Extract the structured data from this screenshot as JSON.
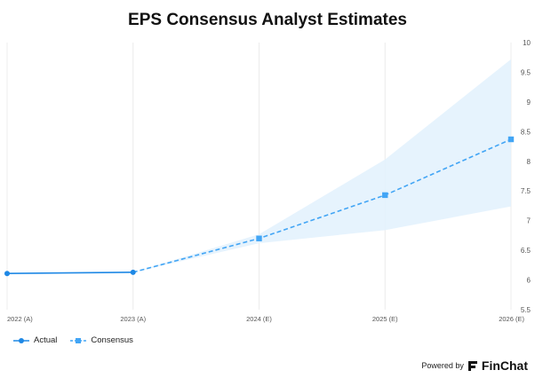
{
  "chart_data": {
    "type": "line",
    "title": "EPS Consensus Analyst Estimates",
    "categories": [
      "2022 (A)",
      "2023 (A)",
      "2024 (E)",
      "2025 (E)",
      "2026 (E)"
    ],
    "series": [
      {
        "name": "Actual",
        "values": [
          6.11,
          6.13,
          null,
          null,
          null
        ],
        "color": "#1e88e5",
        "style": "solid",
        "marker": "circle"
      },
      {
        "name": "Consensus",
        "values": [
          null,
          6.13,
          6.7,
          7.43,
          8.37
        ],
        "color": "#42a5f5",
        "style": "dashed",
        "marker": "square"
      }
    ],
    "band": {
      "low": [
        null,
        6.13,
        6.62,
        6.84,
        7.24
      ],
      "high": [
        null,
        6.13,
        6.77,
        8.03,
        9.72
      ],
      "color": "#e3f2fd"
    },
    "ylim": [
      5.5,
      10
    ],
    "yticks": [
      "5.5",
      "6",
      "6.5",
      "7",
      "7.5",
      "8",
      "8.5",
      "9",
      "9.5",
      "10"
    ],
    "grid": {
      "vertical": true,
      "horizontal": false
    },
    "legend": "bottom-left"
  },
  "legend": {
    "actual_label": "Actual",
    "consensus_label": "Consensus"
  },
  "footer": {
    "powered_by": "Powered by",
    "brand": "FinChat"
  }
}
